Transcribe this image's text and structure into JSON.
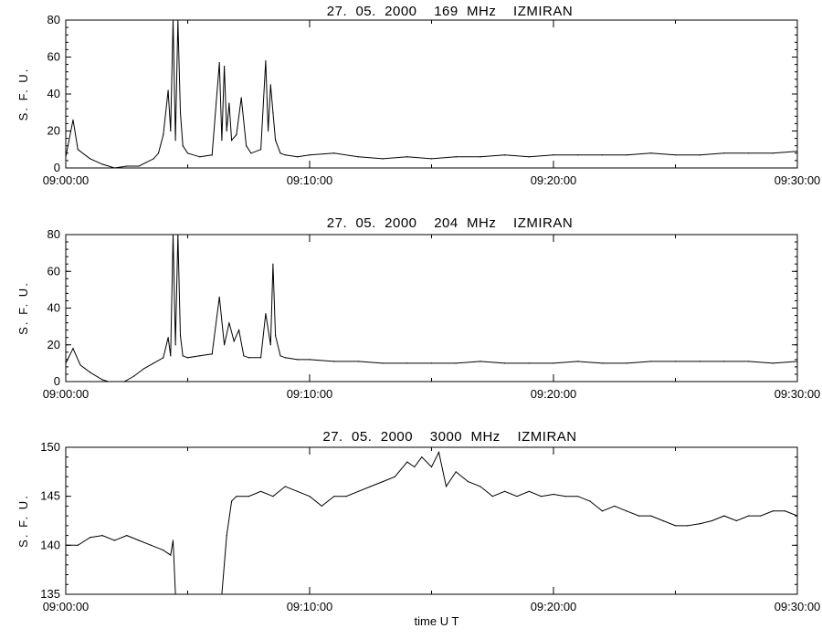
{
  "xlabel": "time  U T",
  "chart_data": [
    {
      "type": "line",
      "title": "27.  05.  2000    169  MHz    IZMIRAN",
      "ylabel": "S. F. U.",
      "ylim": [
        0,
        80
      ],
      "yticks": [
        0,
        20,
        40,
        60,
        80
      ],
      "xlim": [
        0,
        30
      ],
      "xticks": [
        0,
        10,
        20,
        30
      ],
      "xtick_labels": [
        "09:00:00",
        "09:10:00",
        "09:20:00",
        "09:30:00"
      ],
      "x": [
        0,
        0.3,
        0.5,
        1,
        1.5,
        2,
        2.5,
        3,
        3.3,
        3.6,
        3.8,
        4,
        4.2,
        4.3,
        4.4,
        4.5,
        4.6,
        4.7,
        4.8,
        5,
        5.5,
        6,
        6.3,
        6.4,
        6.5,
        6.6,
        6.7,
        6.8,
        7,
        7.2,
        7.4,
        7.6,
        8,
        8.2,
        8.3,
        8.4,
        8.5,
        8.6,
        8.8,
        9,
        9.5,
        10,
        11,
        12,
        13,
        14,
        15,
        16,
        17,
        18,
        19,
        20,
        21,
        22,
        23,
        24,
        25,
        26,
        27,
        28,
        29,
        30
      ],
      "y": [
        6,
        26,
        10,
        5,
        2,
        0,
        1,
        1,
        3,
        5,
        8,
        18,
        42,
        20,
        80,
        15,
        80,
        30,
        12,
        8,
        6,
        7,
        57,
        15,
        55,
        20,
        35,
        15,
        18,
        38,
        12,
        8,
        10,
        58,
        20,
        45,
        30,
        15,
        8,
        7,
        6,
        7,
        8,
        6,
        5,
        6,
        5,
        6,
        6,
        7,
        6,
        7,
        7,
        7,
        7,
        8,
        7,
        7,
        8,
        8,
        8,
        9
      ]
    },
    {
      "type": "line",
      "title": "27.  05.  2000    204  MHz    IZMIRAN",
      "ylabel": "S. F. U.",
      "ylim": [
        0,
        80
      ],
      "yticks": [
        0,
        20,
        40,
        60,
        80
      ],
      "xlim": [
        0,
        30
      ],
      "xticks": [
        0,
        10,
        20,
        30
      ],
      "xtick_labels": [
        "09:00:00",
        "09:10:00",
        "09:20:00",
        "09:30:00"
      ],
      "x": [
        0,
        0.3,
        0.6,
        1,
        1.5,
        2,
        2.4,
        2.8,
        3.2,
        3.6,
        4,
        4.2,
        4.3,
        4.4,
        4.5,
        4.6,
        4.7,
        4.8,
        5,
        5.5,
        6,
        6.3,
        6.5,
        6.7,
        6.9,
        7.1,
        7.3,
        7.5,
        8,
        8.2,
        8.4,
        8.5,
        8.6,
        8.8,
        9,
        9.5,
        10,
        11,
        12,
        13,
        14,
        15,
        16,
        17,
        18,
        19,
        20,
        21,
        22,
        23,
        24,
        25,
        26,
        27,
        28,
        29,
        30
      ],
      "y": [
        10,
        18,
        9,
        5,
        1,
        -1,
        0,
        3,
        7,
        10,
        13,
        24,
        14,
        80,
        20,
        80,
        25,
        14,
        13,
        14,
        15,
        46,
        20,
        32,
        22,
        28,
        14,
        13,
        13,
        37,
        20,
        64,
        25,
        14,
        13,
        12,
        12,
        11,
        11,
        10,
        10,
        10,
        10,
        11,
        10,
        10,
        10,
        11,
        10,
        10,
        11,
        11,
        11,
        11,
        11,
        10,
        11
      ]
    },
    {
      "type": "line",
      "title": "27.  05.  2000    3000  MHz    IZMIRAN",
      "ylabel": "S. F. U.",
      "ylim": [
        135,
        150
      ],
      "yticks": [
        135,
        140,
        145,
        150
      ],
      "xlim": [
        0,
        30
      ],
      "xticks": [
        0,
        10,
        20,
        30
      ],
      "xtick_labels": [
        "09:00:00",
        "09:10:00",
        "09:20:00",
        "09:30:00"
      ],
      "gap": [
        4.5,
        6.4
      ],
      "x": [
        0,
        0.5,
        1,
        1.5,
        2,
        2.5,
        3,
        3.5,
        4,
        4.3,
        4.4,
        4.5,
        6.4,
        6.6,
        6.8,
        7,
        7.5,
        8,
        8.5,
        9,
        9.5,
        10,
        10.5,
        11,
        11.5,
        12,
        12.5,
        13,
        13.5,
        14,
        14.3,
        14.6,
        15,
        15.3,
        15.6,
        16,
        16.5,
        17,
        17.5,
        18,
        18.5,
        19,
        19.5,
        20,
        20.5,
        21,
        21.5,
        22,
        22.5,
        23,
        23.5,
        24,
        24.5,
        25,
        25.5,
        26,
        26.5,
        27,
        27.5,
        28,
        28.5,
        29,
        29.5,
        30
      ],
      "y": [
        140,
        140,
        140.8,
        141,
        140.5,
        141,
        140.5,
        140,
        139.5,
        139,
        140.5,
        135,
        135,
        141,
        144.5,
        145,
        145,
        145.5,
        145,
        146,
        145.5,
        145,
        144,
        145,
        145,
        145.5,
        146,
        146.5,
        147,
        148.5,
        148,
        149,
        148,
        149.5,
        146,
        147.5,
        146.5,
        146,
        145,
        145.5,
        145,
        145.5,
        145,
        145.2,
        145,
        145,
        144.5,
        143.5,
        144,
        143.5,
        143,
        143,
        142.5,
        142,
        142,
        142.2,
        142.5,
        143,
        142.5,
        143,
        143,
        143.5,
        143.5,
        143
      ]
    }
  ]
}
